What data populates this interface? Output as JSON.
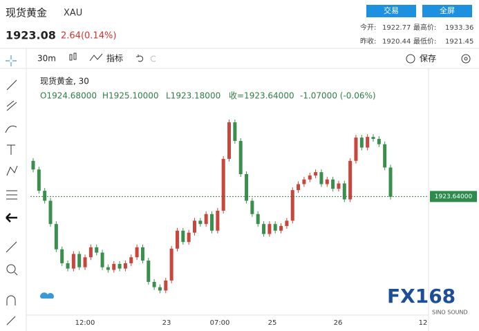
{
  "header": {
    "name": "现货黄金",
    "symbol": "XAU",
    "price": "1923.08",
    "change": "2.64(0.14%)",
    "buttons": [
      "交易",
      "全屏"
    ],
    "stats": [
      [
        "今开:",
        "1922.77"
      ],
      [
        "最高价:",
        "1933.36"
      ],
      [
        "昨收:",
        "1920.44"
      ],
      [
        "最低价:",
        "1921.45"
      ]
    ]
  },
  "toolbar": {
    "interval": "30m",
    "indicators": "指标",
    "save": "保存"
  },
  "legend": {
    "title": "现货黄金, 30",
    "ohlc": [
      "O1924.68000",
      "H1925.10000",
      "L1923.18000",
      "收=1923.64000",
      "-1.07000 (-0.06%)"
    ]
  },
  "logo": {
    "text": "FX168",
    "sub": "SINO SOUND"
  },
  "chart_data": {
    "type": "candlestick",
    "up_color": "#c8463c",
    "down_color": "#3b8f4e",
    "ylim": [
      1905.8,
      1942.8
    ],
    "categories": [
      "12:00",
      "23",
      "07:00",
      "25",
      "26",
      "12"
    ],
    "last_price": {
      "value": 1923.64,
      "label": "1923.64000"
    },
    "open": [
      1929.0,
      1927.7,
      1924.5,
      1923.0,
      1919.5,
      1915.7,
      1913.6,
      1912.8,
      1915.0,
      1913.0,
      1914.5,
      1916.0,
      1915.2,
      1913.0,
      1912.6,
      1913.5,
      1912.8,
      1913.6,
      1914.5,
      1916.0,
      1914.0,
      1910.8,
      1910.0,
      1909.5,
      1911.0,
      1915.8,
      1918.5,
      1916.8,
      1918.2,
      1920.0,
      1919.5,
      1921.0,
      1918.5,
      1921.5,
      1929.3,
      1934.8,
      1932.0,
      1927.0,
      1923.0,
      1921.0,
      1919.5,
      1918.0,
      1919.5,
      1918.5,
      1919.2,
      1920.0,
      1924.6,
      1925.5,
      1926.2,
      1926.8,
      1927.3,
      1925.5,
      1926.2,
      1924.8,
      1925.6,
      1923.2,
      1929.0,
      1932.5,
      1931.0,
      1932.6,
      1932.3,
      1931.5,
      1928.0
    ],
    "close": [
      1927.7,
      1924.5,
      1923.0,
      1919.5,
      1915.7,
      1913.6,
      1912.8,
      1915.0,
      1913.0,
      1914.5,
      1916.0,
      1915.2,
      1913.0,
      1912.6,
      1913.5,
      1912.8,
      1913.6,
      1914.5,
      1916.0,
      1914.0,
      1910.8,
      1910.0,
      1909.5,
      1911.0,
      1915.8,
      1918.5,
      1916.8,
      1918.2,
      1920.0,
      1919.5,
      1921.0,
      1918.5,
      1921.5,
      1929.3,
      1934.8,
      1932.0,
      1927.0,
      1923.0,
      1921.0,
      1919.5,
      1918.0,
      1919.5,
      1918.5,
      1919.2,
      1920.0,
      1924.6,
      1925.5,
      1926.2,
      1926.8,
      1927.3,
      1925.5,
      1926.2,
      1924.8,
      1925.6,
      1923.2,
      1929.0,
      1932.5,
      1931.0,
      1932.6,
      1932.3,
      1931.5,
      1928.0,
      1923.6
    ]
  }
}
